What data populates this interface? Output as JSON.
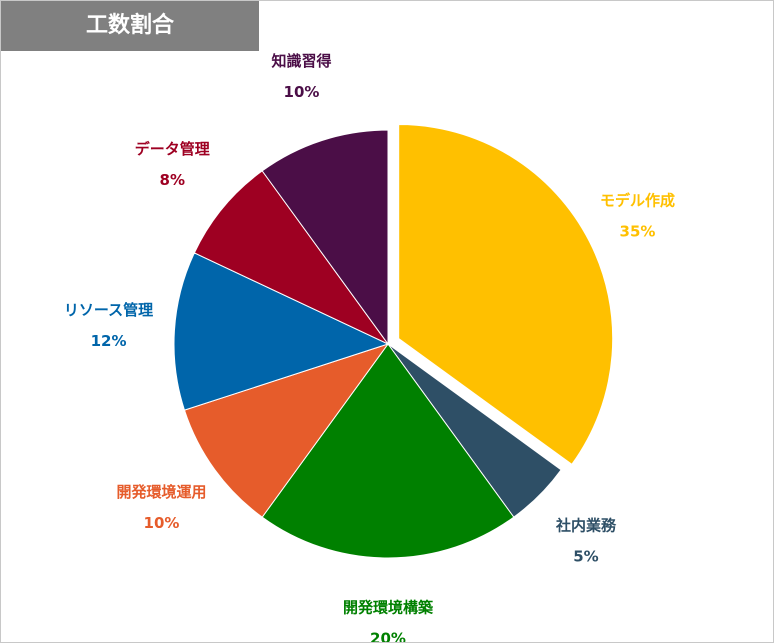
{
  "chart_data": {
    "type": "pie",
    "title": "工数割合",
    "categories": [
      "モデル作成",
      "社内業務",
      "開発環境構築",
      "開発環境運用",
      "リソース管理",
      "データ管理",
      "知識習得"
    ],
    "values": [
      35,
      5,
      20,
      10,
      12,
      8,
      10
    ],
    "value_labels": [
      "35%",
      "5%",
      "20%",
      "10%",
      "12%",
      "8%",
      "10%"
    ],
    "colors": [
      "#ffc000",
      "#2e4f66",
      "#008000",
      "#e65c2b",
      "#0065aa",
      "#9e0022",
      "#4b0e47"
    ],
    "explode": [
      true,
      false,
      false,
      false,
      false,
      false,
      false
    ]
  }
}
